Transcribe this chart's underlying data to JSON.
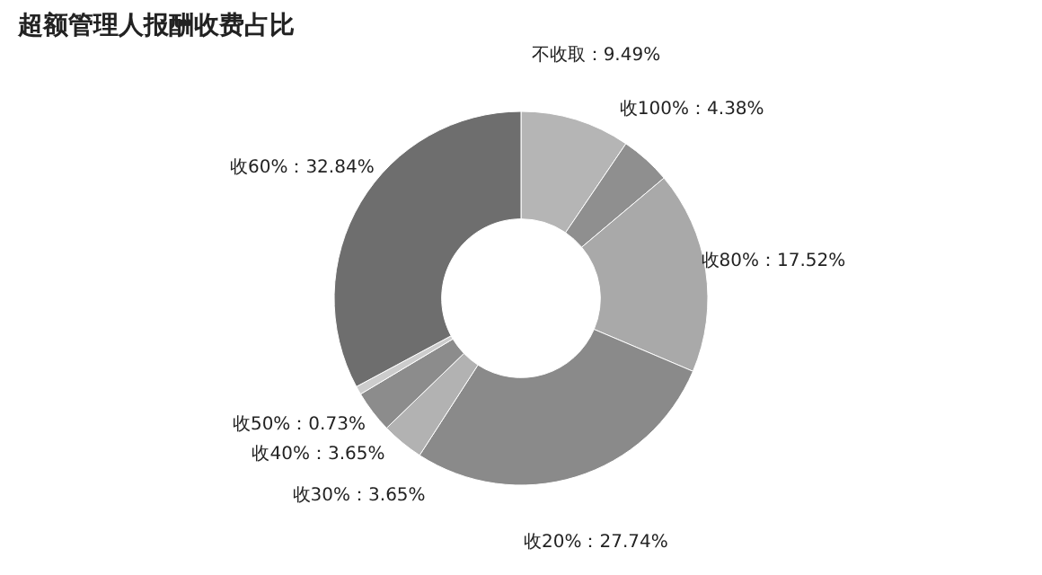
{
  "chart_data": {
    "type": "donut",
    "title": "超额管理人报酬收费占比",
    "categories": [
      "不收取",
      "收100%",
      "收80%",
      "收20%",
      "收30%",
      "收40%",
      "收50%",
      "收60%"
    ],
    "values": [
      9.49,
      4.38,
      17.52,
      27.74,
      3.65,
      3.65,
      0.73,
      32.84
    ],
    "value_labels": [
      "9.49%",
      "4.38%",
      "17.52%",
      "27.74%",
      "3.65%",
      "3.65%",
      "0.73%",
      "32.84%"
    ],
    "colors": [
      "#b5b5b5",
      "#8f8f8f",
      "#a9a9a9",
      "#8a8a8a",
      "#b2b2b2",
      "#8c8c8c",
      "#cccccc",
      "#6e6e6e"
    ],
    "legend": false
  }
}
